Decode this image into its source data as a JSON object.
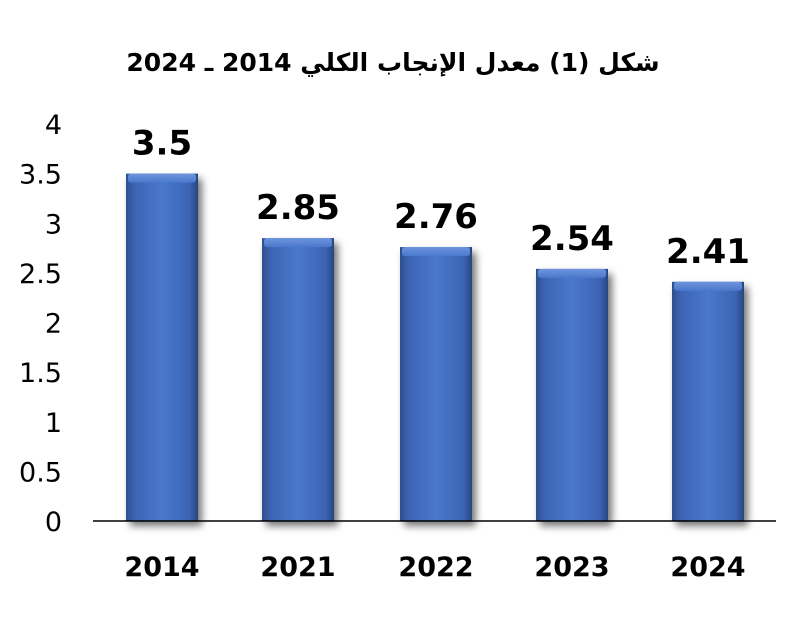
{
  "chart_data": {
    "type": "bar",
    "title": "شكل (1) معدل الإنجاب الكلي 2014 ـ 2024",
    "categories": [
      "2014",
      "2021",
      "2022",
      "2023",
      "2024"
    ],
    "values": [
      3.5,
      2.85,
      2.76,
      2.54,
      2.41
    ],
    "data_labels": [
      "3.5",
      "2.85",
      "2.76",
      "2.54",
      "2.41"
    ],
    "ylim": [
      0,
      4
    ],
    "yticks": [
      "0",
      "0.5",
      "1",
      "1.5",
      "2",
      "2.5",
      "3",
      "3.5",
      "4"
    ],
    "grid": false,
    "legend": "none",
    "bar_color": "#4472C4",
    "xlabel": "",
    "ylabel": ""
  }
}
